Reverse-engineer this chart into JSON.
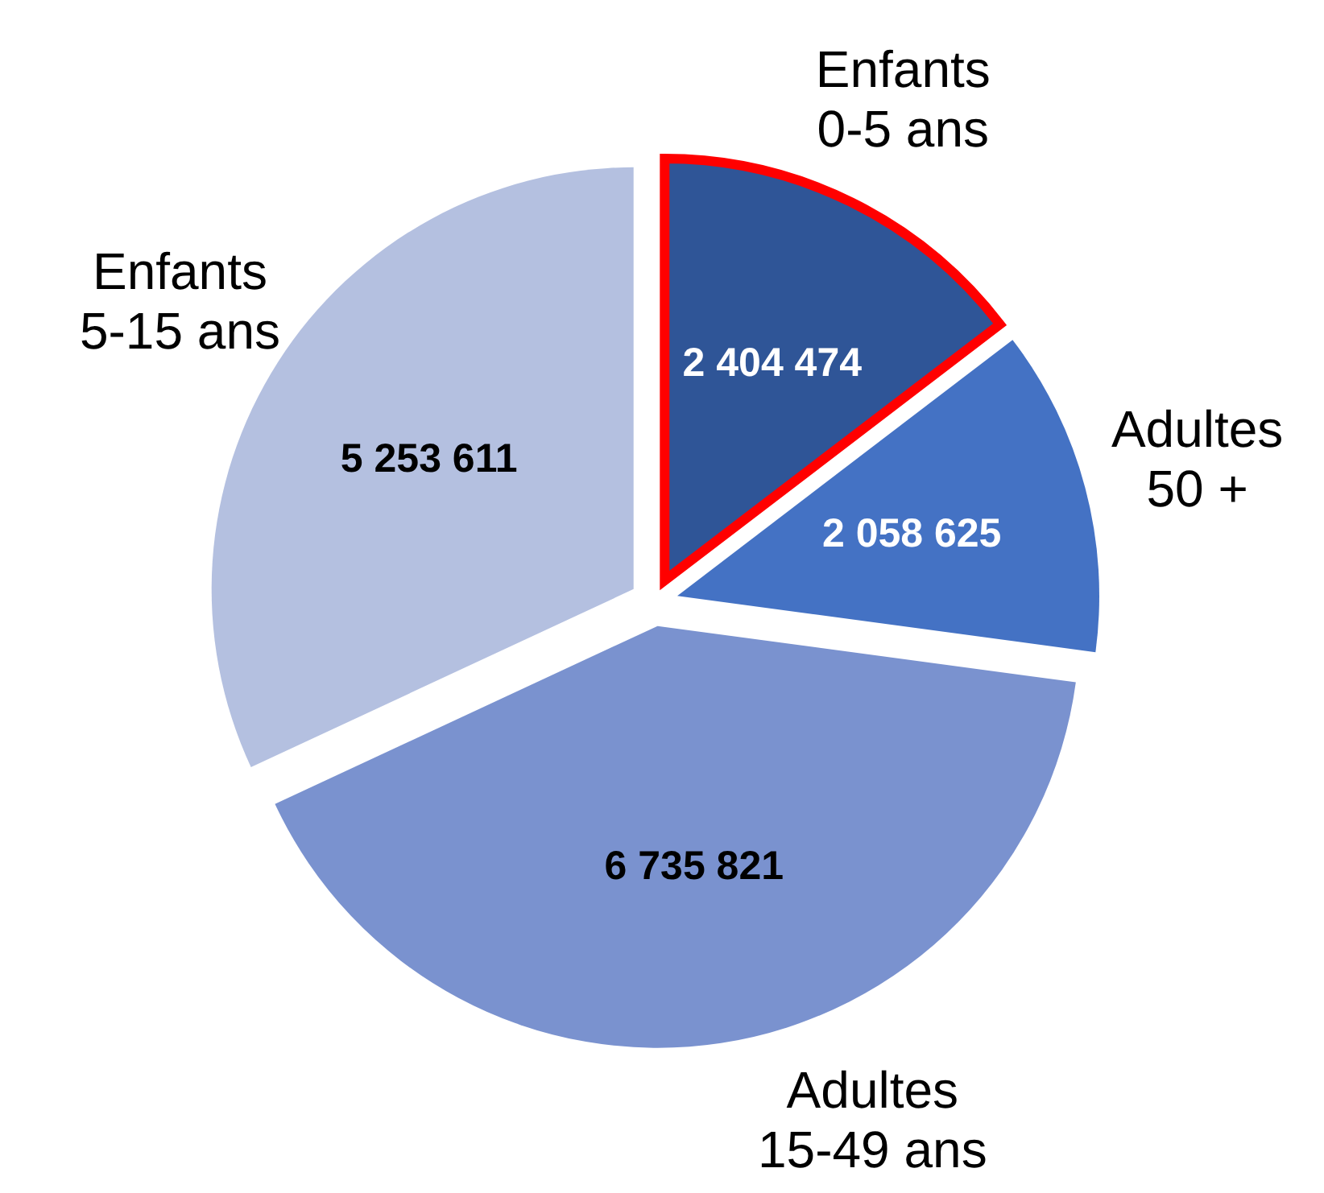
{
  "chart_data": {
    "type": "pie",
    "categories": [
      "Enfants 0-5 ans",
      "Adultes 50 +",
      "Adultes 15-49 ans",
      "Enfants 5-15 ans"
    ],
    "values": [
      2404474,
      2058625,
      6735821,
      5253611
    ],
    "value_labels": [
      "2 404 474",
      "2 058 625",
      "6 735 821",
      "5 253 611"
    ],
    "colors": [
      "#2f5597",
      "#4472c4",
      "#7a92cf",
      "#b4c0e0"
    ]
  }
}
